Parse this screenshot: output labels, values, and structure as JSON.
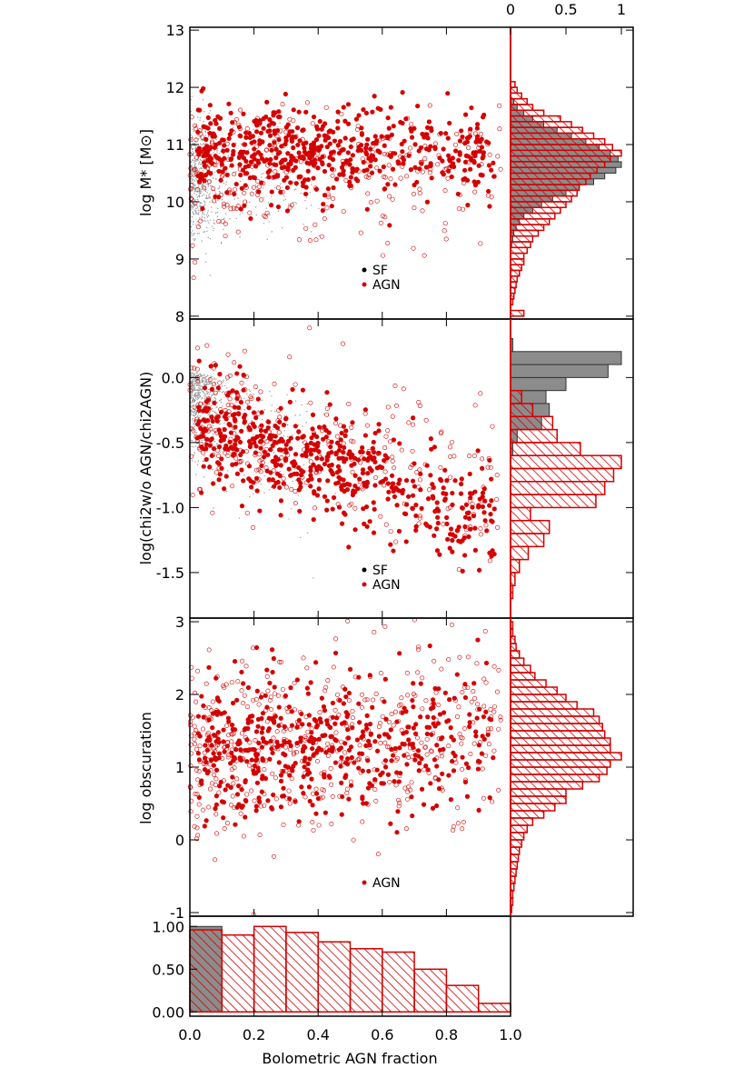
{
  "colors": {
    "agn": "#d40000",
    "sf_points": "#999999",
    "sf_hist": "#8c8c8c",
    "axis": "#000000"
  },
  "chart_data": [
    {
      "id": "mass",
      "type": "scatter",
      "ylabel": "log M* [M⊙]",
      "ylim": [
        7.95,
        13.05
      ],
      "xlim": [
        0,
        1
      ],
      "yticks": [
        {
          "v": 8,
          "label": "8"
        },
        {
          "v": 9,
          "label": "9"
        },
        {
          "v": 10,
          "label": "10"
        },
        {
          "v": 11,
          "label": "11"
        },
        {
          "v": 12,
          "label": "12"
        },
        {
          "v": 13,
          "label": "13"
        }
      ],
      "legend": [
        "SF",
        "AGN"
      ],
      "distribution": {
        "sf": {
          "x_max": 0.1,
          "y_mean": 10.4,
          "y_sd": 0.5
        },
        "agn_filled": {
          "x_range": [
            0.0,
            0.97
          ],
          "y_mean": 10.85,
          "y_sd": 0.35
        },
        "agn_open": {
          "x_range": [
            0.0,
            0.97
          ],
          "y_mean": 10.6,
          "y_sd": 0.55
        }
      },
      "side_hist": {
        "bin_edges_start": 8.0,
        "bin_width": 0.1,
        "sf": [
          0,
          0,
          0,
          0,
          0,
          0,
          0,
          0,
          0,
          0,
          0,
          0,
          0.01,
          0.02,
          0.03,
          0.05,
          0.08,
          0.12,
          0.2,
          0.28,
          0.38,
          0.5,
          0.62,
          0.75,
          0.85,
          0.95,
          1.0,
          0.97,
          0.9,
          0.8,
          0.68,
          0.55,
          0.42,
          0.3,
          0.2,
          0.12,
          0.06,
          0.03
        ],
        "agn": [
          0.12,
          0,
          0.02,
          0.03,
          0.04,
          0.05,
          0.06,
          0.08,
          0.1,
          0.12,
          0.12,
          0.15,
          0.18,
          0.2,
          0.25,
          0.3,
          0.35,
          0.4,
          0.45,
          0.5,
          0.55,
          0.6,
          0.62,
          0.68,
          0.72,
          0.78,
          0.85,
          0.9,
          1.0,
          0.92,
          0.85,
          0.75,
          0.65,
          0.55,
          0.45,
          0.3,
          0.2,
          0.15,
          0.1,
          0.06,
          0.04
        ]
      }
    },
    {
      "id": "chi2",
      "type": "scatter",
      "ylabel": "log(chi2w/o AGN/chi2AGN)",
      "ylim": [
        -1.85,
        0.45
      ],
      "xlim": [
        0,
        1
      ],
      "yticks": [
        {
          "v": 0,
          "label": "0.0"
        },
        {
          "v": -0.5,
          "label": "-0.5"
        },
        {
          "v": -1,
          "label": "-1.0"
        },
        {
          "v": -1.5,
          "label": "-1.5"
        }
      ],
      "legend": [
        "SF",
        "AGN"
      ],
      "side_hist": {
        "bin_edges_start": -1.7,
        "bin_width": 0.1,
        "sf": [
          0,
          0,
          0,
          0,
          0,
          0,
          0,
          0,
          0,
          0,
          0,
          0.02,
          0.06,
          0.28,
          0.35,
          0.32,
          0.5,
          0.88,
          1.0,
          0.02
        ],
        "agn": [
          0.02,
          0.04,
          0.08,
          0.16,
          0.3,
          0.35,
          0.18,
          0.77,
          0.85,
          0.93,
          1.0,
          0.63,
          0.42,
          0.38,
          0.2,
          0.1
        ]
      }
    },
    {
      "id": "obsc",
      "type": "scatter",
      "ylabel": "log obscuration",
      "ylim": [
        -1.05,
        3.05
      ],
      "xlim": [
        0,
        1
      ],
      "yticks": [
        {
          "v": -1,
          "label": "-1"
        },
        {
          "v": 0,
          "label": "0"
        },
        {
          "v": 1,
          "label": "1"
        },
        {
          "v": 2,
          "label": "2"
        },
        {
          "v": 3,
          "label": "3"
        }
      ],
      "legend": [
        "AGN"
      ],
      "side_hist": {
        "bin_edges_start": -1.0,
        "bin_width": 0.1,
        "agn": [
          0.01,
          0.02,
          0.02,
          0.03,
          0.04,
          0.05,
          0.06,
          0.07,
          0.08,
          0.1,
          0.12,
          0.15,
          0.2,
          0.3,
          0.4,
          0.5,
          0.5,
          0.65,
          0.8,
          0.87,
          0.9,
          1.0,
          0.9,
          0.9,
          0.85,
          0.83,
          0.8,
          0.75,
          0.6,
          0.5,
          0.42,
          0.32,
          0.22,
          0.18,
          0.12,
          0.08,
          0.05,
          0.04,
          0.02,
          0.02
        ]
      }
    },
    {
      "id": "frac",
      "type": "bar",
      "xlabel": "Bolometric AGN fraction",
      "categories": [
        "0.0-0.1",
        "0.1-0.2",
        "0.2-0.3",
        "0.3-0.4",
        "0.4-0.5",
        "0.5-0.6",
        "0.6-0.7",
        "0.7-0.8",
        "0.8-0.9",
        "0.9-1.0"
      ],
      "series": [
        {
          "name": "AGN",
          "values": [
            0.96,
            0.9,
            1.0,
            0.93,
            0.82,
            0.74,
            0.7,
            0.5,
            0.31,
            0.1
          ]
        },
        {
          "name": "SF",
          "values": [
            1.0,
            0.0,
            0,
            0,
            0,
            0,
            0,
            0,
            0,
            0
          ]
        }
      ],
      "ylim": [
        -0.05,
        1.12
      ],
      "yticks": [
        {
          "v": 0,
          "label": "0.00"
        },
        {
          "v": 0.5,
          "label": "0.50"
        },
        {
          "v": 1,
          "label": "1.00"
        }
      ],
      "xticks": [
        {
          "v": 0,
          "label": "0.0"
        },
        {
          "v": 0.2,
          "label": "0.2"
        },
        {
          "v": 0.4,
          "label": "0.4"
        },
        {
          "v": 0.6,
          "label": "0.6"
        },
        {
          "v": 0.8,
          "label": "0.8"
        },
        {
          "v": 1,
          "label": "1.0"
        }
      ]
    }
  ],
  "top_axis": {
    "ticks": [
      {
        "v": 0,
        "label": "0"
      },
      {
        "v": 0.5,
        "label": "0.5"
      },
      {
        "v": 1,
        "label": "1"
      }
    ]
  }
}
